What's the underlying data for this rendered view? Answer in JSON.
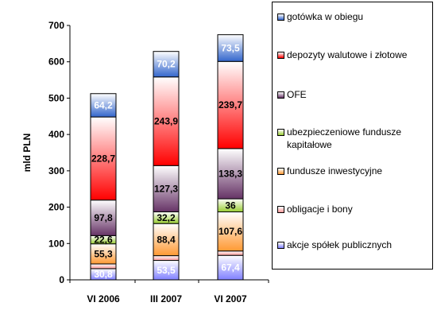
{
  "chart_data": {
    "type": "bar",
    "stacked": true,
    "categories": [
      "VI 2006",
      "III 2007",
      "VI 2007"
    ],
    "ylabel": "mld PLN",
    "ylim": [
      0,
      700
    ],
    "yticks": [
      "0",
      "100",
      "200",
      "300",
      "400",
      "500",
      "600",
      "700"
    ],
    "grid": false,
    "legend_position": "right",
    "series": [
      {
        "name": "akcje spółek publicznych",
        "values": [
          30.8,
          53.5,
          67.4
        ],
        "labels": [
          "30,8",
          "53,5",
          "67,4"
        ],
        "color": "#8080ff"
      },
      {
        "name": "obligacje i bony",
        "values": [
          13,
          13,
          12
        ],
        "labels": [
          "",
          "",
          ""
        ],
        "color": "#ff9999"
      },
      {
        "name": "fundusze inwestycyjne",
        "values": [
          55.3,
          88.4,
          107.6
        ],
        "labels": [
          "55,3",
          "88,4",
          "107,6"
        ],
        "color": "#ff9933"
      },
      {
        "name": "ubezpieczeniowe fundusze kapitałowe",
        "values": [
          22.6,
          32.2,
          36
        ],
        "labels": [
          "22,6",
          "32,2",
          "36"
        ],
        "color": "#99cc33"
      },
      {
        "name": "OFE",
        "values": [
          97.8,
          127.3,
          138.3
        ],
        "labels": [
          "97,8",
          "127,3",
          "138,3"
        ],
        "color": "#663366"
      },
      {
        "name": "depozyty walutowe i złotowe",
        "values": [
          228.7,
          243.9,
          239.7
        ],
        "labels": [
          "228,7",
          "243,9",
          "239,7"
        ],
        "color": "#ff0000"
      },
      {
        "name": "gotówka w obiegu",
        "values": [
          64.2,
          70.2,
          73.5
        ],
        "labels": [
          "64,2",
          "70,2",
          "73,5"
        ],
        "color": "#3366cc"
      }
    ]
  }
}
